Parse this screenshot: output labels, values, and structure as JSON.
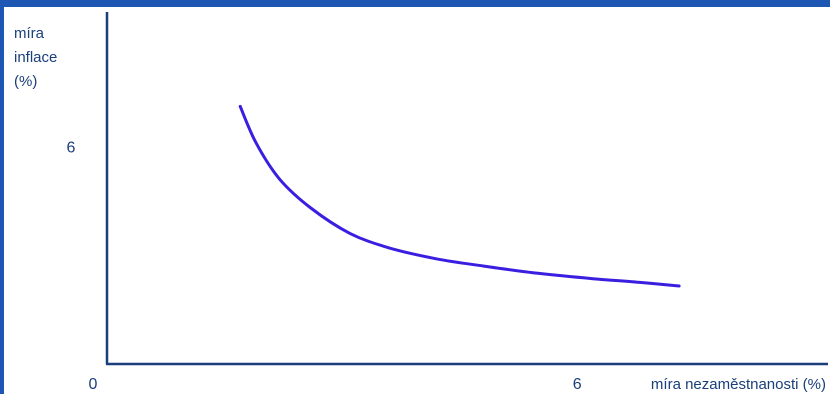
{
  "colors": {
    "frame": "#1e56b4",
    "axis": "#1a3f7a",
    "curve": "#3a1fe0",
    "text": "#1a3f7a"
  },
  "chart_data": {
    "type": "line",
    "title": "",
    "xlabel": "míra nezaměstnanosti (%)",
    "ylabel_lines": [
      "míra",
      "inflace",
      "(%)"
    ],
    "xlim": [
      0,
      9.2
    ],
    "ylim": [
      0,
      9.7
    ],
    "origin_label": "0",
    "x_ticks": [
      {
        "value": 6,
        "label": "6"
      }
    ],
    "y_ticks": [
      {
        "value": 6,
        "label": "6"
      }
    ],
    "grid": false,
    "series": [
      {
        "x": [
          1.7,
          1.9,
          2.2,
          2.6,
          3.1,
          3.6,
          4.2,
          4.8,
          5.5,
          6.2,
          6.8,
          7.3
        ],
        "y": [
          7.1,
          6.1,
          5.1,
          4.3,
          3.6,
          3.2,
          2.9,
          2.7,
          2.5,
          2.35,
          2.25,
          2.15
        ]
      }
    ]
  }
}
